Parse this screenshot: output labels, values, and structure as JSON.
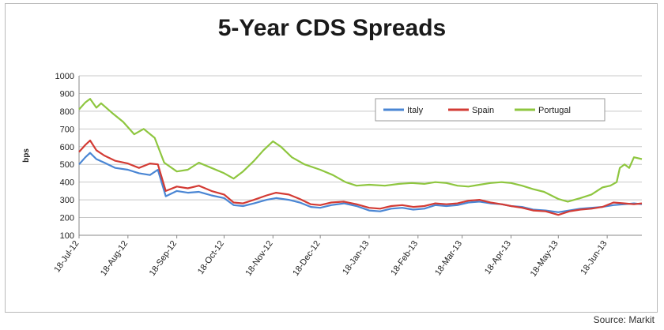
{
  "chart_data": {
    "type": "line",
    "title": "5-Year CDS Spreads",
    "ylabel": "bps",
    "xlabel": "",
    "source": "Source: Markit",
    "ylim": [
      100,
      1000
    ],
    "yticks": [
      100,
      200,
      300,
      400,
      500,
      600,
      700,
      800,
      900,
      1000
    ],
    "x_start": "2012-07-18",
    "x_end": "2013-07-10",
    "xtick_labels": [
      "18-Jul-12",
      "18-Aug-12",
      "18-Sep-12",
      "18-Oct-12",
      "18-Nov-12",
      "18-Dec-12",
      "18-Jan-13",
      "18-Feb-13",
      "18-Mar-13",
      "18-Apr-13",
      "18-May-13",
      "18-Jun-13"
    ],
    "xtick_dates": [
      "2012-07-18",
      "2012-08-18",
      "2012-09-18",
      "2012-10-18",
      "2012-11-18",
      "2012-12-18",
      "2013-01-18",
      "2013-02-18",
      "2013-03-18",
      "2013-04-18",
      "2013-05-18",
      "2013-06-18"
    ],
    "grid": "horizontal",
    "legend": "top-right",
    "series": [
      {
        "name": "Italy",
        "color": "#4a86d4",
        "points": [
          [
            "2012-07-18",
            500
          ],
          [
            "2012-07-22",
            540
          ],
          [
            "2012-07-25",
            565
          ],
          [
            "2012-07-29",
            530
          ],
          [
            "2012-08-03",
            510
          ],
          [
            "2012-08-10",
            480
          ],
          [
            "2012-08-18",
            470
          ],
          [
            "2012-08-25",
            450
          ],
          [
            "2012-09-01",
            440
          ],
          [
            "2012-09-06",
            470
          ],
          [
            "2012-09-11",
            320
          ],
          [
            "2012-09-18",
            350
          ],
          [
            "2012-09-25",
            340
          ],
          [
            "2012-10-02",
            345
          ],
          [
            "2012-10-10",
            325
          ],
          [
            "2012-10-18",
            310
          ],
          [
            "2012-10-24",
            270
          ],
          [
            "2012-10-30",
            265
          ],
          [
            "2012-11-06",
            280
          ],
          [
            "2012-11-14",
            300
          ],
          [
            "2012-11-20",
            310
          ],
          [
            "2012-11-28",
            300
          ],
          [
            "2012-12-05",
            285
          ],
          [
            "2012-12-12",
            260
          ],
          [
            "2012-12-18",
            255
          ],
          [
            "2012-12-25",
            270
          ],
          [
            "2013-01-02",
            280
          ],
          [
            "2013-01-10",
            265
          ],
          [
            "2013-01-18",
            240
          ],
          [
            "2013-01-25",
            235
          ],
          [
            "2013-02-01",
            250
          ],
          [
            "2013-02-08",
            255
          ],
          [
            "2013-02-15",
            245
          ],
          [
            "2013-02-22",
            250
          ],
          [
            "2013-03-01",
            270
          ],
          [
            "2013-03-08",
            265
          ],
          [
            "2013-03-15",
            270
          ],
          [
            "2013-03-22",
            285
          ],
          [
            "2013-03-29",
            290
          ],
          [
            "2013-04-05",
            280
          ],
          [
            "2013-04-12",
            275
          ],
          [
            "2013-04-18",
            265
          ],
          [
            "2013-04-25",
            260
          ],
          [
            "2013-05-02",
            245
          ],
          [
            "2013-05-10",
            240
          ],
          [
            "2013-05-18",
            230
          ],
          [
            "2013-05-25",
            240
          ],
          [
            "2013-06-01",
            250
          ],
          [
            "2013-06-08",
            255
          ],
          [
            "2013-06-15",
            260
          ],
          [
            "2013-06-22",
            270
          ],
          [
            "2013-06-29",
            275
          ],
          [
            "2013-07-05",
            280
          ],
          [
            "2013-07-10",
            275
          ]
        ]
      },
      {
        "name": "Spain",
        "color": "#d33b34",
        "points": [
          [
            "2012-07-18",
            570
          ],
          [
            "2012-07-22",
            610
          ],
          [
            "2012-07-25",
            635
          ],
          [
            "2012-07-29",
            580
          ],
          [
            "2012-08-03",
            550
          ],
          [
            "2012-08-10",
            520
          ],
          [
            "2012-08-18",
            505
          ],
          [
            "2012-08-25",
            480
          ],
          [
            "2012-09-01",
            505
          ],
          [
            "2012-09-06",
            500
          ],
          [
            "2012-09-11",
            350
          ],
          [
            "2012-09-18",
            375
          ],
          [
            "2012-09-25",
            365
          ],
          [
            "2012-10-02",
            380
          ],
          [
            "2012-10-10",
            350
          ],
          [
            "2012-10-18",
            330
          ],
          [
            "2012-10-24",
            285
          ],
          [
            "2012-10-30",
            280
          ],
          [
            "2012-11-06",
            300
          ],
          [
            "2012-11-14",
            325
          ],
          [
            "2012-11-20",
            340
          ],
          [
            "2012-11-28",
            330
          ],
          [
            "2012-12-05",
            305
          ],
          [
            "2012-12-12",
            275
          ],
          [
            "2012-12-18",
            270
          ],
          [
            "2012-12-25",
            285
          ],
          [
            "2013-01-02",
            290
          ],
          [
            "2013-01-10",
            275
          ],
          [
            "2013-01-18",
            255
          ],
          [
            "2013-01-25",
            250
          ],
          [
            "2013-02-01",
            265
          ],
          [
            "2013-02-08",
            270
          ],
          [
            "2013-02-15",
            260
          ],
          [
            "2013-02-22",
            265
          ],
          [
            "2013-03-01",
            280
          ],
          [
            "2013-03-08",
            275
          ],
          [
            "2013-03-15",
            280
          ],
          [
            "2013-03-22",
            295
          ],
          [
            "2013-03-29",
            300
          ],
          [
            "2013-04-05",
            285
          ],
          [
            "2013-04-12",
            275
          ],
          [
            "2013-04-18",
            265
          ],
          [
            "2013-04-25",
            255
          ],
          [
            "2013-05-02",
            240
          ],
          [
            "2013-05-10",
            235
          ],
          [
            "2013-05-18",
            215
          ],
          [
            "2013-05-25",
            235
          ],
          [
            "2013-06-01",
            245
          ],
          [
            "2013-06-08",
            250
          ],
          [
            "2013-06-15",
            260
          ],
          [
            "2013-06-22",
            285
          ],
          [
            "2013-06-29",
            280
          ],
          [
            "2013-07-05",
            275
          ],
          [
            "2013-07-10",
            280
          ]
        ]
      },
      {
        "name": "Portugal",
        "color": "#8ec63f",
        "points": [
          [
            "2012-07-18",
            810
          ],
          [
            "2012-07-22",
            850
          ],
          [
            "2012-07-25",
            870
          ],
          [
            "2012-07-29",
            820
          ],
          [
            "2012-08-01",
            845
          ],
          [
            "2012-08-08",
            790
          ],
          [
            "2012-08-15",
            740
          ],
          [
            "2012-08-22",
            670
          ],
          [
            "2012-08-28",
            700
          ],
          [
            "2012-09-04",
            650
          ],
          [
            "2012-09-10",
            510
          ],
          [
            "2012-09-18",
            460
          ],
          [
            "2012-09-25",
            470
          ],
          [
            "2012-10-02",
            510
          ],
          [
            "2012-10-10",
            480
          ],
          [
            "2012-10-18",
            450
          ],
          [
            "2012-10-24",
            420
          ],
          [
            "2012-10-30",
            460
          ],
          [
            "2012-11-06",
            520
          ],
          [
            "2012-11-12",
            580
          ],
          [
            "2012-11-18",
            630
          ],
          [
            "2012-11-23",
            600
          ],
          [
            "2012-11-30",
            540
          ],
          [
            "2012-12-08",
            500
          ],
          [
            "2012-12-18",
            470
          ],
          [
            "2012-12-26",
            440
          ],
          [
            "2013-01-03",
            400
          ],
          [
            "2013-01-10",
            380
          ],
          [
            "2013-01-18",
            385
          ],
          [
            "2013-01-28",
            380
          ],
          [
            "2013-02-06",
            390
          ],
          [
            "2013-02-14",
            395
          ],
          [
            "2013-02-22",
            390
          ],
          [
            "2013-03-01",
            400
          ],
          [
            "2013-03-08",
            395
          ],
          [
            "2013-03-15",
            380
          ],
          [
            "2013-03-22",
            375
          ],
          [
            "2013-03-29",
            385
          ],
          [
            "2013-04-05",
            395
          ],
          [
            "2013-04-12",
            400
          ],
          [
            "2013-04-18",
            395
          ],
          [
            "2013-04-25",
            380
          ],
          [
            "2013-05-02",
            360
          ],
          [
            "2013-05-09",
            345
          ],
          [
            "2013-05-18",
            305
          ],
          [
            "2013-05-24",
            290
          ],
          [
            "2013-06-01",
            310
          ],
          [
            "2013-06-08",
            330
          ],
          [
            "2013-06-15",
            370
          ],
          [
            "2013-06-20",
            380
          ],
          [
            "2013-06-24",
            400
          ],
          [
            "2013-06-26",
            480
          ],
          [
            "2013-06-29",
            500
          ],
          [
            "2013-07-02",
            480
          ],
          [
            "2013-07-05",
            540
          ],
          [
            "2013-07-10",
            530
          ]
        ]
      }
    ]
  }
}
